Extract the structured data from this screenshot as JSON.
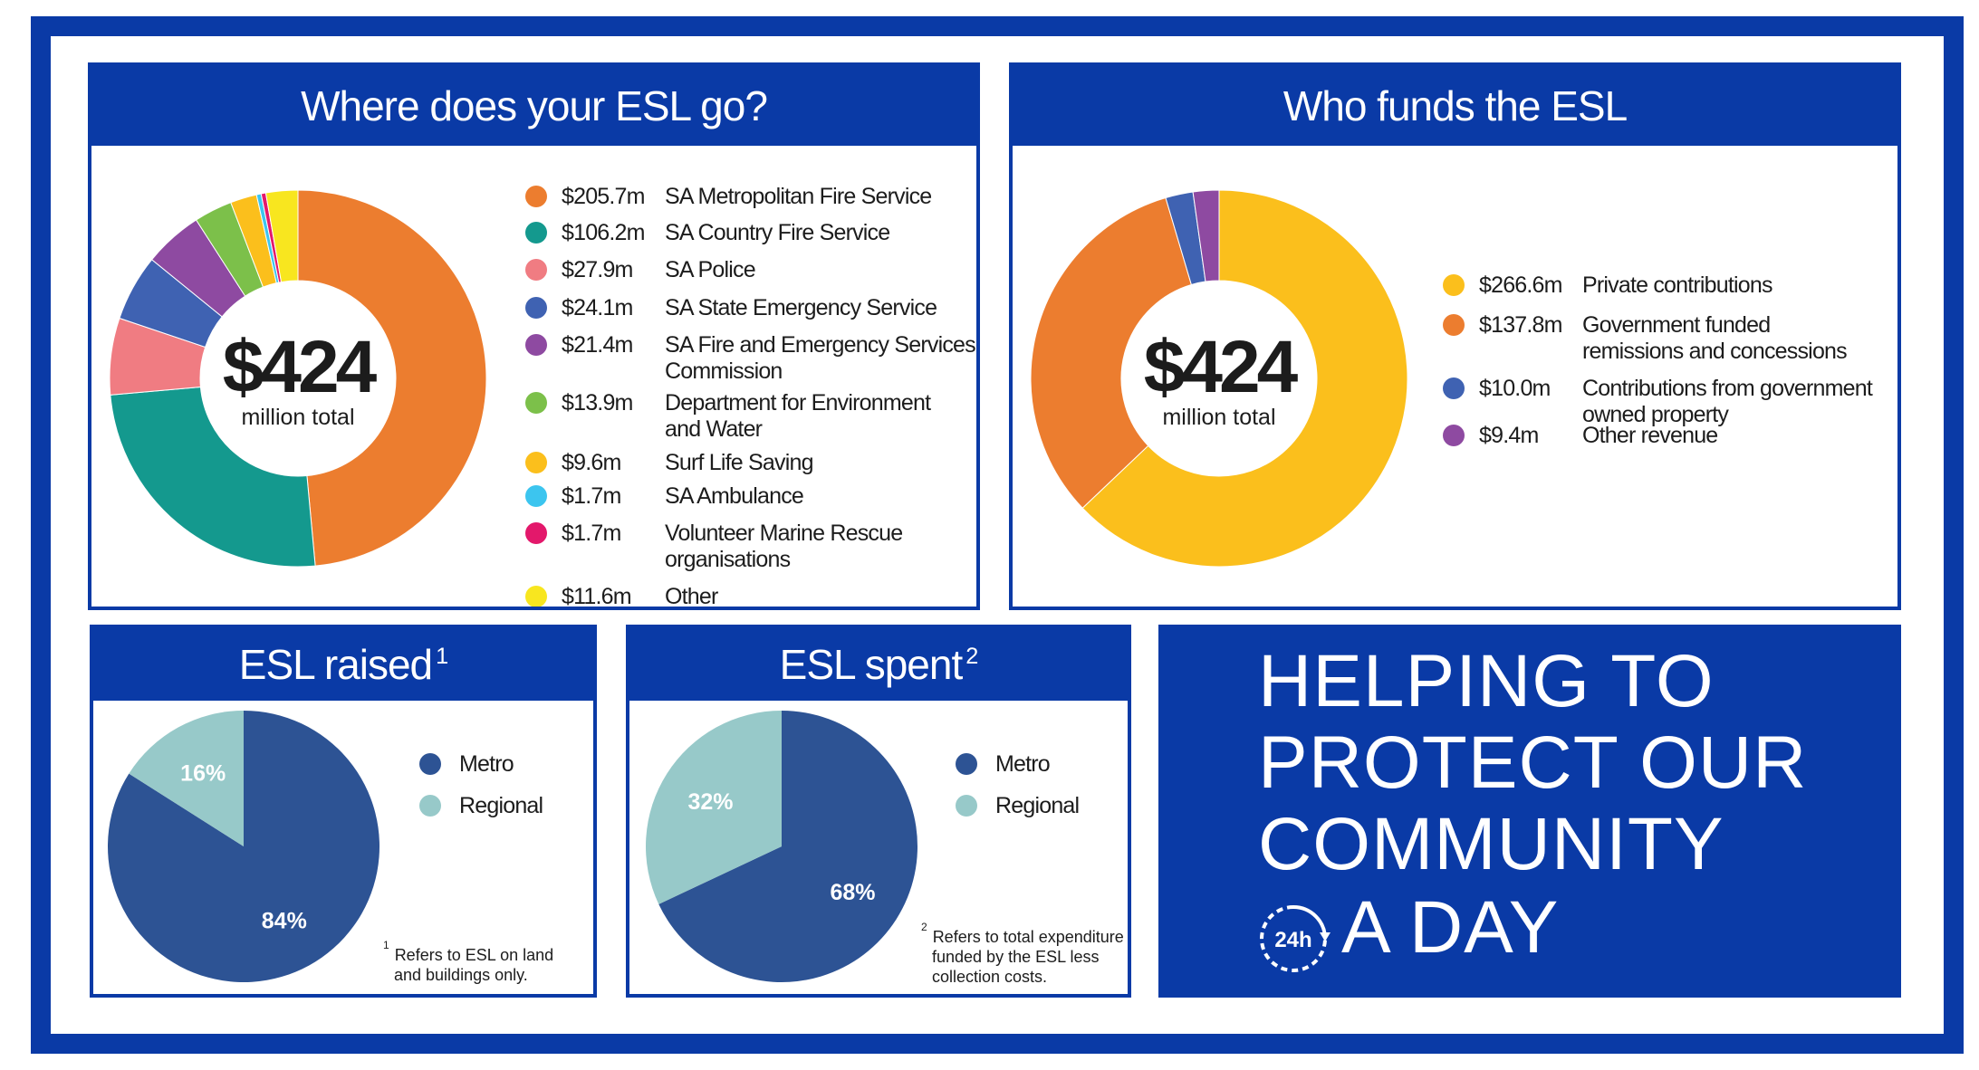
{
  "panels": {
    "where": {
      "title": "Where does your ESL go?",
      "center_value": "$424",
      "center_label": "million total"
    },
    "who": {
      "title": "Who funds the ESL",
      "center_value": "$424",
      "center_label": "million total"
    },
    "raised": {
      "title": "ESL raised",
      "footnote_mark": "1",
      "note_mark": "1",
      "note_text_1": "Refers to ESL on land",
      "note_text_2": "and buildings only."
    },
    "spent": {
      "title": "ESL spent",
      "footnote_mark": "2",
      "note_mark": "2",
      "note_text_1": "Refers to total expenditure",
      "note_text_2": "funded by the ESL less",
      "note_text_3": "collection costs."
    }
  },
  "promo": {
    "line1": "HELPING TO",
    "line2": "PROTECT OUR",
    "line3": "COMMUNITY",
    "clock_text": "24h",
    "line4": "A DAY"
  },
  "chart_data": [
    {
      "type": "pie",
      "donut": true,
      "unit": "$m",
      "categories": [
        "SA Metropolitan Fire Service",
        "SA Country Fire Service",
        "SA Police",
        "SA State Emergency Service",
        "SA Fire and Emergency Services Commission",
        "Department for Environment and Water",
        "Surf Life Saving",
        "SA Ambulance",
        "Volunteer Marine Rescue organisations",
        "Other"
      ],
      "values": [
        205.7,
        106.2,
        27.9,
        24.1,
        21.4,
        13.9,
        9.6,
        1.7,
        1.7,
        11.6
      ],
      "value_labels": [
        "$205.7m",
        "$106.2m",
        "$27.9m",
        "$24.1m",
        "$21.4m",
        "$13.9m",
        "$9.6m",
        "$1.7m",
        "$1.7m",
        "$11.6m"
      ],
      "label_lines": [
        [
          "SA Metropolitan Fire Service"
        ],
        [
          "SA Country Fire Service"
        ],
        [
          "SA Police"
        ],
        [
          "SA State Emergency Service"
        ],
        [
          "SA Fire and Emergency Services",
          "Commission"
        ],
        [
          "Department for Environment",
          "and Water"
        ],
        [
          "Surf Life Saving"
        ],
        [
          "SA Ambulance"
        ],
        [
          "Volunteer Marine Rescue",
          "organisations"
        ],
        [
          "Other"
        ]
      ],
      "colors": [
        "#ec7d2f",
        "#14998e",
        "#f07c82",
        "#3f62b2",
        "#8e4aa1",
        "#7cc04a",
        "#fbbf1c",
        "#3cc5ef",
        "#e3186b",
        "#f8e61f"
      ],
      "legend_position": "right"
    },
    {
      "type": "pie",
      "donut": true,
      "unit": "$m",
      "categories": [
        "Private contributions",
        "Government funded remissions and concessions",
        "Contributions from government owned property",
        "Other revenue"
      ],
      "values": [
        266.6,
        137.8,
        10.0,
        9.4
      ],
      "value_labels": [
        "$266.6m",
        "$137.8m",
        "$10.0m",
        "$9.4m"
      ],
      "label_lines": [
        [
          "Private contributions"
        ],
        [
          "Government funded",
          "remissions and concessions"
        ],
        [
          "Contributions from government",
          "owned property"
        ],
        [
          "Other revenue"
        ]
      ],
      "colors": [
        "#fbbf1c",
        "#ec7d2f",
        "#3f62b2",
        "#8e4aa1"
      ],
      "legend_position": "right"
    },
    {
      "type": "pie",
      "categories": [
        "Metro",
        "Regional"
      ],
      "values": [
        84,
        16
      ],
      "value_labels": [
        "84%",
        "16%"
      ],
      "colors": [
        "#2d5394",
        "#97c9c9"
      ],
      "legend_position": "right"
    },
    {
      "type": "pie",
      "categories": [
        "Metro",
        "Regional"
      ],
      "values": [
        68,
        32
      ],
      "value_labels": [
        "68%",
        "32%"
      ],
      "colors": [
        "#2d5394",
        "#97c9c9"
      ],
      "legend_position": "right"
    }
  ]
}
